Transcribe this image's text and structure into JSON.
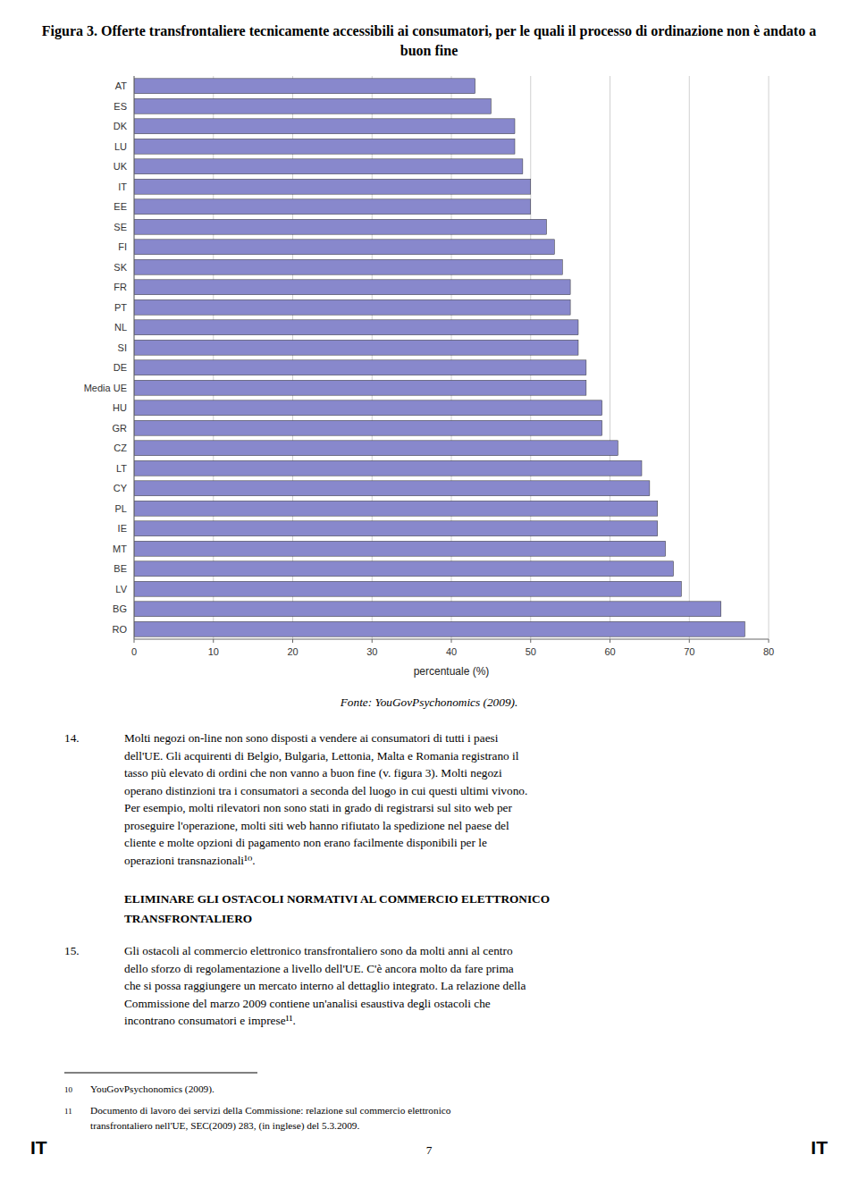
{
  "chart_data": {
    "type": "bar",
    "orientation": "horizontal",
    "title": "Figura 3. Offerte transfrontaliere tecnicamente accessibili ai consumatori, per le quali il processo di ordinazione non è andato a buon fine",
    "categories": [
      "AT",
      "ES",
      "DK",
      "LU",
      "UK",
      "IT",
      "EE",
      "SE",
      "FI",
      "SK",
      "FR",
      "PT",
      "NL",
      "SI",
      "DE",
      "Media UE",
      "HU",
      "GR",
      "CZ",
      "LT",
      "CY",
      "PL",
      "IE",
      "MT",
      "BE",
      "LV",
      "BG",
      "RO"
    ],
    "values": [
      43,
      45,
      48,
      48,
      49,
      50,
      50,
      52,
      53,
      54,
      55,
      55,
      56,
      56,
      57,
      57,
      59,
      59,
      61,
      64,
      65,
      66,
      66,
      67,
      68,
      69,
      74,
      77
    ],
    "color": "#8888cc",
    "xlabel": "percentuale (%)",
    "xlim": [
      0,
      80
    ],
    "xticks": [
      0,
      10,
      20,
      30,
      40,
      50,
      60,
      70,
      80
    ],
    "grid": true,
    "annotations": [
      "Fonte: YouGovPsychonomics (2009).",
      "14.",
      "Molti negozi on-line non sono disposti a vendere ai consumatori di tutti i paesi\ndell'UE. Gli acquirenti di Belgio, Bulgaria, Lettonia, Malta e Romania registrano il\ntasso più elevato di ordini che non vanno a buon fine (v. figura 3). Molti negozi\noperano distinzioni tra i consumatori a seconda del luogo in cui questi ultimi vivono.\nPer esempio, molti rilevatori non sono stati in grado di registrarsi sul sito web per\nproseguire l'operazione, molti siti web hanno rifiutato la spedizione nel paese del\ncliente e molte opzioni di pagamento non erano facilmente disponibili per le\noperazioni transnazionali¹⁰.",
      "ELIMINARE GLI OSTACOLI NORMATIVI AL COMMERCIO ELETTRONICO\nTRANSFRONTALIERO",
      "15.",
      "Gli ostacoli al commercio elettronico transfrontaliero sono da molti anni al centro\ndello sforzo di regolamentazione a livello dell'UE. C'è ancora molto da fare prima\nche si possa raggiungere un mercato interno al dettaglio integrato. La relazione della\nCommissione del marzo 2009 contiene un'analisi esaustiva degli ostacoli che\nincontrano consumatori e imprese¹¹.",
      "10",
      "YouGovPsychonomics (2009).",
      "11",
      "Documento di lavoro dei servizi della Commissione: relazione sul commercio elettronico\ntransfrontaliero nell'UE, SEC(2009) 283, (in inglese) del 5.3.2009.",
      "IT",
      "IT",
      "7"
    ]
  }
}
